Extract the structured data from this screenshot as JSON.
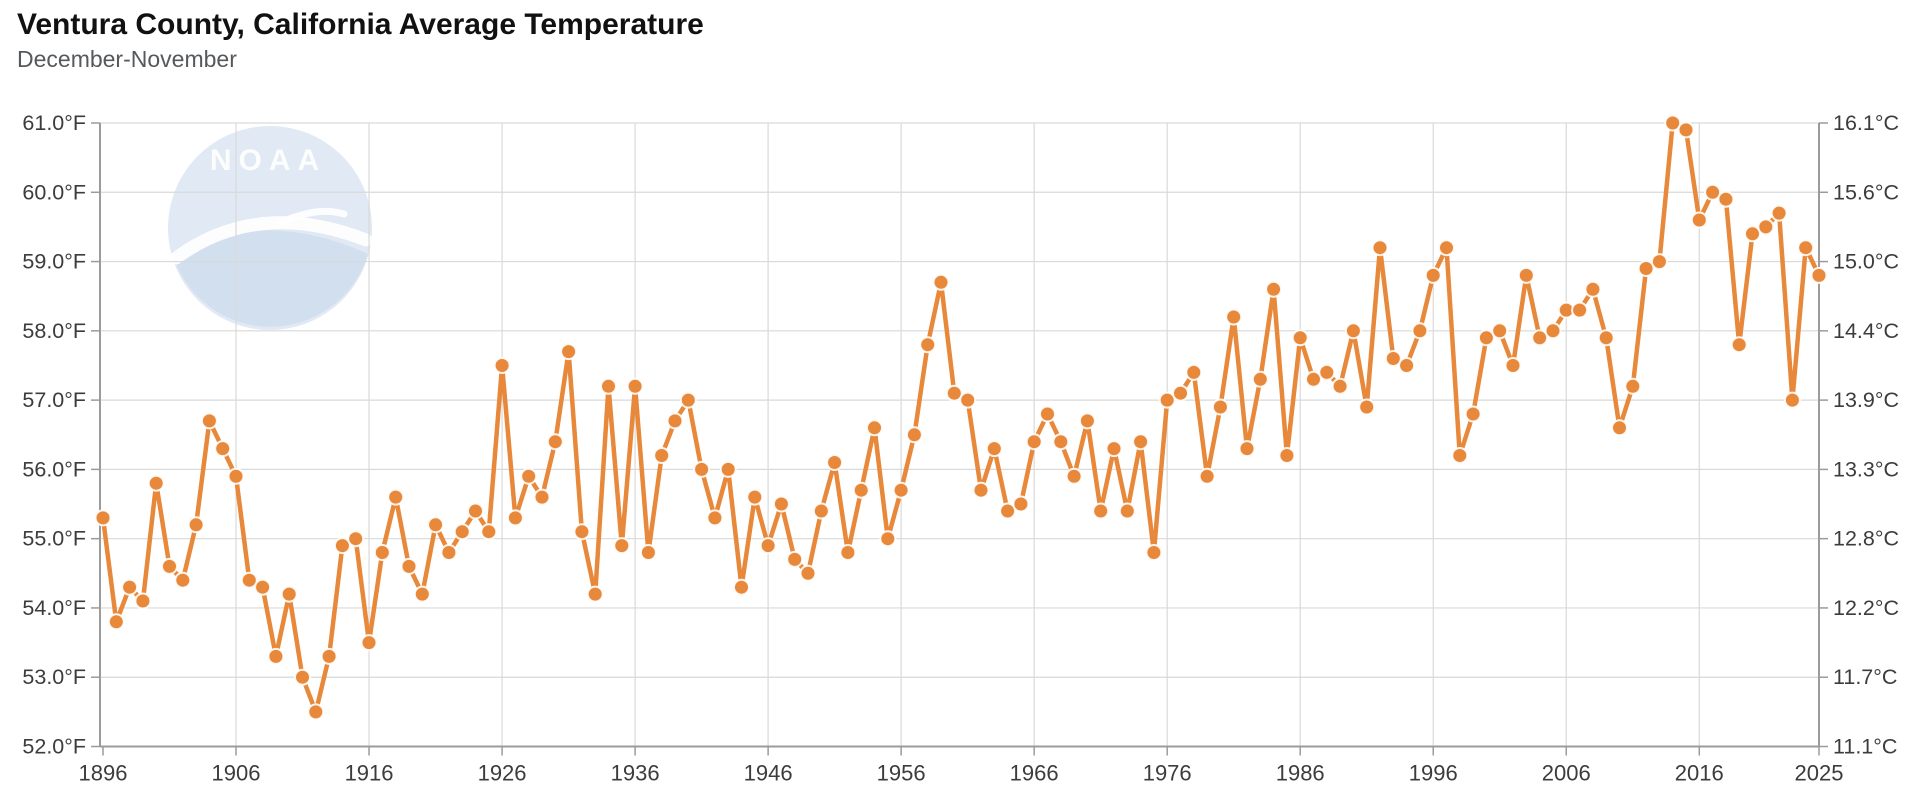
{
  "header": {
    "title": "Ventura County, California Average Temperature",
    "subtitle": "December-November"
  },
  "watermark": {
    "label": "NOAA"
  },
  "chart_data": {
    "type": "line",
    "series_name": "Average Temperature (December-November)",
    "title": "Ventura County, California Average Temperature",
    "subtitle": "December-November",
    "x_start": 1896,
    "x_end": 2025,
    "ylim_f": [
      52.0,
      61.0
    ],
    "grid": true,
    "years": [
      1896,
      1897,
      1898,
      1899,
      1900,
      1901,
      1902,
      1903,
      1904,
      1905,
      1906,
      1907,
      1908,
      1909,
      1910,
      1911,
      1912,
      1913,
      1914,
      1915,
      1916,
      1917,
      1918,
      1919,
      1920,
      1921,
      1922,
      1923,
      1924,
      1925,
      1926,
      1927,
      1928,
      1929,
      1930,
      1931,
      1932,
      1933,
      1934,
      1935,
      1936,
      1937,
      1938,
      1939,
      1940,
      1941,
      1942,
      1943,
      1944,
      1945,
      1946,
      1947,
      1948,
      1949,
      1950,
      1951,
      1952,
      1953,
      1954,
      1955,
      1956,
      1957,
      1958,
      1959,
      1960,
      1961,
      1962,
      1963,
      1964,
      1965,
      1966,
      1967,
      1968,
      1969,
      1970,
      1971,
      1972,
      1973,
      1974,
      1975,
      1976,
      1977,
      1978,
      1979,
      1980,
      1981,
      1982,
      1983,
      1984,
      1985,
      1986,
      1987,
      1988,
      1989,
      1990,
      1991,
      1992,
      1993,
      1994,
      1995,
      1996,
      1997,
      1998,
      1999,
      2000,
      2001,
      2002,
      2003,
      2004,
      2005,
      2006,
      2007,
      2008,
      2009,
      2010,
      2011,
      2012,
      2013,
      2014,
      2015,
      2016,
      2017,
      2018,
      2019,
      2020,
      2021,
      2022,
      2023,
      2024,
      2025
    ],
    "values_f": [
      55.3,
      53.8,
      54.3,
      54.1,
      55.8,
      54.6,
      54.4,
      55.2,
      56.7,
      56.3,
      55.9,
      54.4,
      54.3,
      53.3,
      54.2,
      53.0,
      52.5,
      53.3,
      54.9,
      55.0,
      53.5,
      54.8,
      55.6,
      54.6,
      54.2,
      55.2,
      54.8,
      55.1,
      55.4,
      55.1,
      57.5,
      55.3,
      55.9,
      55.6,
      56.4,
      57.7,
      55.1,
      54.2,
      57.2,
      54.9,
      57.2,
      54.8,
      56.2,
      56.7,
      57.0,
      56.0,
      55.3,
      56.0,
      54.3,
      55.6,
      54.9,
      55.5,
      54.7,
      54.5,
      55.4,
      56.1,
      54.8,
      55.7,
      56.6,
      55.0,
      55.7,
      56.5,
      57.8,
      58.7,
      57.1,
      57.0,
      55.7,
      56.3,
      55.4,
      55.5,
      56.4,
      56.8,
      56.4,
      55.9,
      56.7,
      55.4,
      56.3,
      55.4,
      56.4,
      54.8,
      57.0,
      57.1,
      57.4,
      55.9,
      56.9,
      58.2,
      56.3,
      57.3,
      58.6,
      56.2,
      57.9,
      57.3,
      57.4,
      57.2,
      58.0,
      56.9,
      59.2,
      57.6,
      57.5,
      58.0,
      58.8,
      59.2,
      56.2,
      56.8,
      57.9,
      58.0,
      57.5,
      58.8,
      57.9,
      58.0,
      58.3,
      58.3,
      58.6,
      57.9,
      56.6,
      57.2,
      58.9,
      59.0,
      61.0,
      60.9,
      59.6,
      60.0,
      59.9,
      57.8,
      59.4,
      59.5,
      59.7,
      57.0,
      59.2,
      58.8
    ],
    "yaxis_left_labels": [
      "61.0°F",
      "60.0°F",
      "59.0°F",
      "58.0°F",
      "57.0°F",
      "56.0°F",
      "55.0°F",
      "54.0°F",
      "53.0°F",
      "52.0°F"
    ],
    "yaxis_right_labels": [
      "16.1°C",
      "15.6°C",
      "15.0°C",
      "14.4°C",
      "13.9°C",
      "13.3°C",
      "12.8°C",
      "12.2°C",
      "11.7°C",
      "11.1°C"
    ],
    "yaxis_values": [
      61,
      60,
      59,
      58,
      57,
      56,
      55,
      54,
      53,
      52
    ],
    "xticks": [
      1896,
      1906,
      1916,
      1926,
      1936,
      1946,
      1956,
      1966,
      1976,
      1986,
      1996,
      2006,
      2016,
      2025
    ],
    "line_color": "#e8883a",
    "marker_color": "#e8883a",
    "marker_outline": "#ffffff",
    "grid_color": "#d9d9d9",
    "axis_color": "#9b9b9b",
    "tick_label_color": "#3c3c3c",
    "title_color": "#111111",
    "subtitle_color": "#56595c",
    "watermark_light_blue": "#ccdbed",
    "watermark_dark_blue": "#b5cae4"
  }
}
